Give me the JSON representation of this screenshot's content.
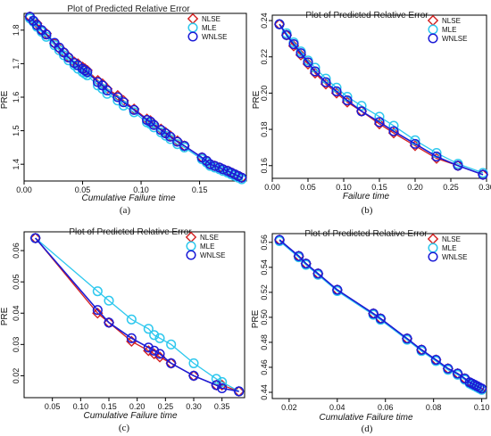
{
  "chart_data": [
    {
      "type": "line",
      "caption": "(a)",
      "title": "Plot of Predicted Relative Error",
      "xlabel": "Cumulative Failure time",
      "ylabel": "PRE",
      "xlim": [
        0,
        0.19
      ],
      "ylim": [
        1.35,
        1.85
      ],
      "xticks": [
        0.0,
        0.05,
        0.1,
        0.15
      ],
      "xtick_labels": [
        "0.00",
        "0.05",
        "0.10",
        "0.15"
      ],
      "yticks": [
        1.4,
        1.5,
        1.6,
        1.7,
        1.8
      ],
      "ytick_labels": [
        "1.4",
        "1.5",
        "1.6",
        "1.7",
        "1.8"
      ],
      "legend_position": "top-right",
      "x": [
        0.005,
        0.008,
        0.011,
        0.015,
        0.019,
        0.026,
        0.03,
        0.034,
        0.038,
        0.043,
        0.046,
        0.05,
        0.052,
        0.054,
        0.063,
        0.067,
        0.071,
        0.08,
        0.085,
        0.094,
        0.105,
        0.108,
        0.111,
        0.117,
        0.121,
        0.125,
        0.131,
        0.137,
        0.152,
        0.156,
        0.159,
        0.163,
        0.167,
        0.17,
        0.174,
        0.177,
        0.18,
        0.183,
        0.186
      ],
      "series": [
        {
          "name": "NLSE",
          "marker": "diamond",
          "color": "#d42020",
          "values": [
            1.84,
            1.83,
            1.82,
            1.8,
            1.79,
            1.76,
            1.745,
            1.735,
            1.72,
            1.705,
            1.7,
            1.69,
            1.685,
            1.68,
            1.65,
            1.64,
            1.625,
            1.605,
            1.59,
            1.565,
            1.535,
            1.53,
            1.52,
            1.505,
            1.495,
            1.485,
            1.47,
            1.455,
            1.42,
            1.41,
            1.4,
            1.395,
            1.39,
            1.385,
            1.38,
            1.375,
            1.37,
            1.365,
            1.36
          ]
        },
        {
          "name": "MLE",
          "marker": "circle",
          "color": "#2ec8ee",
          "values": [
            1.835,
            1.825,
            1.81,
            1.795,
            1.78,
            1.755,
            1.74,
            1.725,
            1.71,
            1.695,
            1.685,
            1.675,
            1.67,
            1.665,
            1.635,
            1.625,
            1.61,
            1.59,
            1.575,
            1.555,
            1.525,
            1.52,
            1.51,
            1.495,
            1.485,
            1.475,
            1.46,
            1.45,
            1.415,
            1.405,
            1.395,
            1.39,
            1.385,
            1.38,
            1.375,
            1.37,
            1.365,
            1.36,
            1.355
          ]
        },
        {
          "name": "WNLSE",
          "marker": "circle",
          "color": "#1b1bd6",
          "values": [
            1.84,
            1.828,
            1.815,
            1.8,
            1.787,
            1.762,
            1.748,
            1.733,
            1.718,
            1.702,
            1.695,
            1.685,
            1.68,
            1.675,
            1.645,
            1.635,
            1.62,
            1.6,
            1.585,
            1.562,
            1.532,
            1.527,
            1.517,
            1.502,
            1.492,
            1.482,
            1.467,
            1.455,
            1.42,
            1.41,
            1.4,
            1.395,
            1.39,
            1.385,
            1.38,
            1.375,
            1.37,
            1.365,
            1.36
          ]
        }
      ]
    },
    {
      "type": "line",
      "caption": "(b)",
      "title": "Plot of Predicted Relative Error",
      "xlabel": "Failure time",
      "ylabel": "PRE",
      "xlim": [
        0,
        0.3
      ],
      "ylim": [
        0.153,
        0.243
      ],
      "xticks": [
        0.0,
        0.05,
        0.1,
        0.15,
        0.2,
        0.25,
        0.3
      ],
      "xtick_labels": [
        "0.00",
        "0.05",
        "0.10",
        "0.15",
        "0.20",
        "0.25",
        "0.30"
      ],
      "yticks": [
        0.16,
        0.18,
        0.2,
        0.22,
        0.24
      ],
      "ytick_labels": [
        "0.16",
        "0.18",
        "0.20",
        "0.22",
        "0.24"
      ],
      "legend_position": "top-right",
      "x": [
        0.01,
        0.02,
        0.03,
        0.04,
        0.05,
        0.06,
        0.075,
        0.09,
        0.105,
        0.125,
        0.15,
        0.17,
        0.2,
        0.23,
        0.26,
        0.295
      ],
      "series": [
        {
          "name": "NLSE",
          "marker": "diamond",
          "color": "#d42020",
          "values": [
            0.238,
            0.232,
            0.226,
            0.221,
            0.216,
            0.211,
            0.205,
            0.2,
            0.195,
            0.19,
            0.183,
            0.178,
            0.171,
            0.164,
            0.16,
            0.155
          ]
        },
        {
          "name": "MLE",
          "marker": "circle",
          "color": "#2ec8ee",
          "values": [
            0.238,
            0.233,
            0.228,
            0.223,
            0.218,
            0.214,
            0.208,
            0.203,
            0.198,
            0.193,
            0.187,
            0.182,
            0.174,
            0.167,
            0.161,
            0.156
          ]
        },
        {
          "name": "WNLSE",
          "marker": "circle",
          "color": "#1b1bd6",
          "values": [
            0.238,
            0.232,
            0.227,
            0.222,
            0.217,
            0.212,
            0.206,
            0.201,
            0.196,
            0.19,
            0.184,
            0.179,
            0.172,
            0.165,
            0.16,
            0.155
          ]
        }
      ]
    },
    {
      "type": "line",
      "caption": "(c)",
      "title": "Plot of Predicted Relative Error",
      "xlabel": "Cumulative Failure time",
      "ylabel": "PRE",
      "xlim": [
        0,
        0.39
      ],
      "ylim": [
        0.013,
        0.066
      ],
      "xticks": [
        0.05,
        0.1,
        0.15,
        0.2,
        0.25,
        0.3,
        0.35
      ],
      "xtick_labels": [
        "0.05",
        "0.10",
        "0.15",
        "0.20",
        "0.25",
        "0.30",
        "0.35"
      ],
      "yticks": [
        0.02,
        0.03,
        0.04,
        0.05,
        0.06
      ],
      "ytick_labels": [
        "0.02",
        "0.03",
        "0.04",
        "0.05",
        "0.06"
      ],
      "legend_position": "top-right",
      "series_x": [
        [
          0.02,
          0.13,
          0.15,
          0.19,
          0.22,
          0.23,
          0.24,
          0.26,
          0.3,
          0.34,
          0.35,
          0.38
        ],
        [
          0.02,
          0.13,
          0.15,
          0.19,
          0.22,
          0.23,
          0.24,
          0.26,
          0.3,
          0.34,
          0.35,
          0.38
        ],
        [
          0.02,
          0.13,
          0.15,
          0.19,
          0.22,
          0.23,
          0.24,
          0.26,
          0.3,
          0.34,
          0.35,
          0.38
        ]
      ],
      "series": [
        {
          "name": "NLSE",
          "marker": "diamond",
          "color": "#d42020",
          "values": [
            0.064,
            0.04,
            0.037,
            0.031,
            0.028,
            0.027,
            0.026,
            0.024,
            0.02,
            0.017,
            0.017,
            0.015
          ]
        },
        {
          "name": "MLE",
          "marker": "circle",
          "color": "#2ec8ee",
          "values": [
            0.064,
            0.047,
            0.044,
            0.038,
            0.035,
            0.033,
            0.032,
            0.03,
            0.024,
            0.019,
            0.018,
            0.015
          ]
        },
        {
          "name": "WNLSE",
          "marker": "circle",
          "color": "#1b1bd6",
          "values": [
            0.064,
            0.041,
            0.037,
            0.032,
            0.029,
            0.028,
            0.027,
            0.024,
            0.02,
            0.017,
            0.016,
            0.015
          ]
        }
      ]
    },
    {
      "type": "line",
      "caption": "(d)",
      "title": "Plot of Predicted Relative Error",
      "xlabel": "Cumulative Failure time",
      "ylabel": "PRE",
      "xlim": [
        0.013,
        0.102
      ],
      "ylim": [
        0.435,
        0.567
      ],
      "xticks": [
        0.02,
        0.04,
        0.06,
        0.08,
        0.1
      ],
      "xtick_labels": [
        "0.02",
        "0.04",
        "0.06",
        "0.08",
        "0.10"
      ],
      "yticks": [
        0.44,
        0.46,
        0.48,
        0.5,
        0.52,
        0.54,
        0.56
      ],
      "ytick_labels": [
        "0.44",
        "0.46",
        "0.48",
        "0.50",
        "0.52",
        "0.54",
        "0.56"
      ],
      "legend_position": "top-right",
      "x": [
        0.016,
        0.024,
        0.027,
        0.032,
        0.04,
        0.055,
        0.058,
        0.069,
        0.075,
        0.081,
        0.086,
        0.09,
        0.093,
        0.095,
        0.096,
        0.097,
        0.098,
        0.099,
        0.1
      ],
      "series": [
        {
          "name": "NLSE",
          "marker": "diamond",
          "color": "#d42020",
          "values": [
            0.562,
            0.549,
            0.543,
            0.535,
            0.522,
            0.503,
            0.499,
            0.483,
            0.474,
            0.466,
            0.459,
            0.455,
            0.451,
            0.448,
            0.447,
            0.446,
            0.445,
            0.444,
            0.443
          ]
        },
        {
          "name": "MLE",
          "marker": "circle",
          "color": "#2ec8ee",
          "values": [
            0.561,
            0.548,
            0.542,
            0.534,
            0.521,
            0.502,
            0.498,
            0.482,
            0.473,
            0.465,
            0.458,
            0.454,
            0.45,
            0.447,
            0.446,
            0.445,
            0.444,
            0.443,
            0.442
          ]
        },
        {
          "name": "WNLSE",
          "marker": "circle",
          "color": "#1b1bd6",
          "values": [
            0.562,
            0.549,
            0.543,
            0.535,
            0.522,
            0.503,
            0.499,
            0.483,
            0.474,
            0.466,
            0.459,
            0.455,
            0.451,
            0.448,
            0.447,
            0.446,
            0.445,
            0.444,
            0.443
          ]
        }
      ]
    }
  ]
}
